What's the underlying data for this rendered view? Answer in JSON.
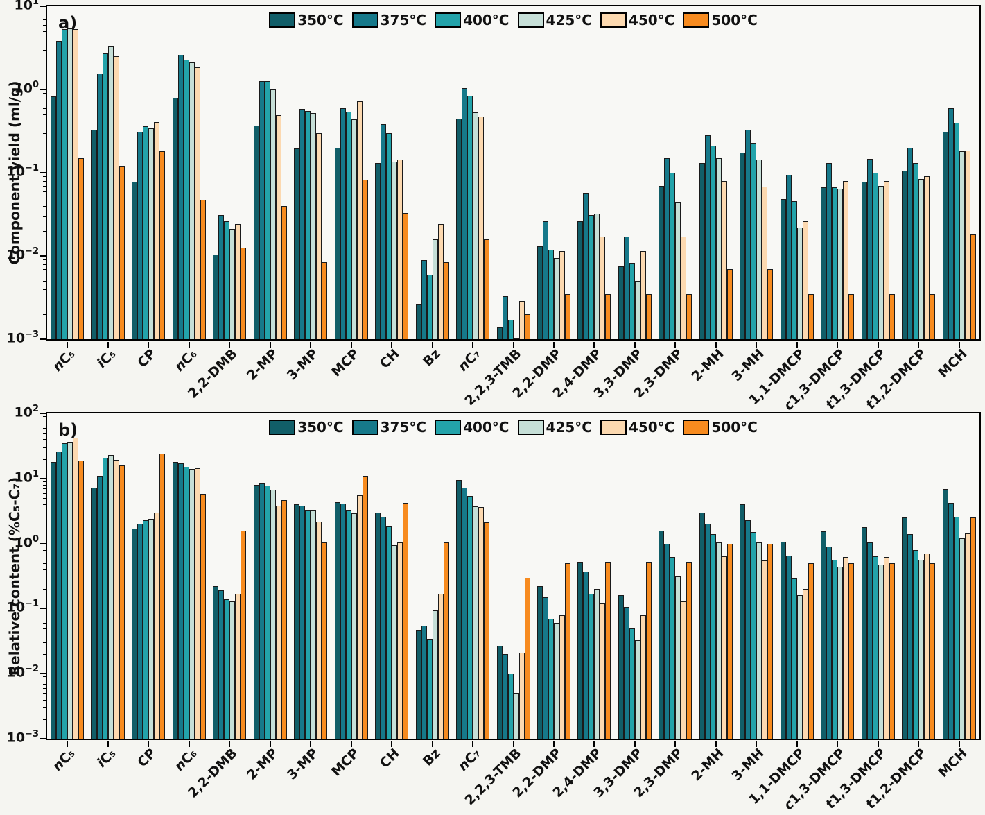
{
  "figure": {
    "panels": [
      {
        "letter": "a)",
        "ylabel": "Component yield (ml/g)",
        "ymin_exp": -3,
        "ymax_exp": 1
      },
      {
        "letter": "b)",
        "ylabel": "Relative content (%C₅-C₇)",
        "ymin_exp": -3,
        "ymax_exp": 2
      }
    ],
    "legend": [
      {
        "label": "350°C",
        "color": "#115e68"
      },
      {
        "label": "375°C",
        "color": "#16798a"
      },
      {
        "label": "400°C",
        "color": "#23a3aa"
      },
      {
        "label": "425°C",
        "color": "#c6dfd7"
      },
      {
        "label": "450°C",
        "color": "#fcd9b0"
      },
      {
        "label": "500°C",
        "color": "#f78b1f"
      }
    ],
    "categories": [
      {
        "label": "nC₅",
        "italic": 1
      },
      {
        "label": "iC₅",
        "italic": 1
      },
      {
        "label": "CP",
        "italic": 0
      },
      {
        "label": "nC₆",
        "italic": 1
      },
      {
        "label": "2,2-DMB",
        "italic": 0
      },
      {
        "label": "2-MP",
        "italic": 0
      },
      {
        "label": "3-MP",
        "italic": 0
      },
      {
        "label": "MCP",
        "italic": 0
      },
      {
        "label": "CH",
        "italic": 0
      },
      {
        "label": "Bz",
        "italic": 0
      },
      {
        "label": "nC₇",
        "italic": 1
      },
      {
        "label": "2,2,3-TMB",
        "italic": 0
      },
      {
        "label": "2,2-DMP",
        "italic": 0
      },
      {
        "label": "2,4-DMP",
        "italic": 0
      },
      {
        "label": "3,3-DMP",
        "italic": 0
      },
      {
        "label": "2,3-DMP",
        "italic": 0
      },
      {
        "label": "2-MH",
        "italic": 0
      },
      {
        "label": "3-MH",
        "italic": 0
      },
      {
        "label": "1,1-DMCP",
        "italic": 0
      },
      {
        "label": "c1,3-DMCP",
        "italic": 1
      },
      {
        "label": "t1,3-DMCP",
        "italic": 1
      },
      {
        "label": "t1,2-DMCP",
        "italic": 1
      },
      {
        "label": "MCH",
        "italic": 0
      }
    ]
  },
  "chart_data": [
    {
      "type": "bar",
      "panel": "a",
      "yscale": "log",
      "ylabel": "Component yield (ml/g)",
      "ylim": [
        0.001,
        10
      ],
      "legend_position": "top-center-inside",
      "grid": false,
      "categories": [
        "nC5",
        "iC5",
        "CP",
        "nC6",
        "2,2-DMB",
        "2-MP",
        "3-MP",
        "MCP",
        "CH",
        "Bz",
        "nC7",
        "2,2,3-TMB",
        "2,2-DMP",
        "2,4-DMP",
        "3,3-DMP",
        "2,3-DMP",
        "2-MH",
        "3-MH",
        "1,1-DMCP",
        "c1,3-DMCP",
        "t1,3-DMCP",
        "t1,2-DMCP",
        "MCH"
      ],
      "series": [
        {
          "name": "350°C",
          "values": [
            0.82,
            0.33,
            0.078,
            0.8,
            0.0105,
            0.37,
            0.195,
            0.2,
            0.13,
            0.0026,
            0.45,
            0.0014,
            0.013,
            0.026,
            0.0075,
            0.07,
            0.13,
            0.175,
            0.048,
            0.067,
            0.078,
            0.107,
            0.31
          ]
        },
        {
          "name": "375°C",
          "values": [
            3.8,
            1.55,
            0.31,
            2.6,
            0.031,
            1.25,
            0.58,
            0.6,
            0.38,
            0.009,
            1.05,
            0.0033,
            0.026,
            0.057,
            0.017,
            0.15,
            0.28,
            0.33,
            0.094,
            0.13,
            0.146,
            0.2,
            0.6
          ]
        },
        {
          "name": "400°C",
          "values": [
            5.3,
            2.7,
            0.36,
            2.3,
            0.026,
            1.25,
            0.55,
            0.54,
            0.3,
            0.006,
            0.85,
            0.0017,
            0.012,
            0.031,
            0.0082,
            0.1,
            0.21,
            0.23,
            0.046,
            0.067,
            0.1,
            0.13,
            0.4
          ]
        },
        {
          "name": "425°C",
          "values": [
            5.4,
            3.3,
            0.34,
            2.1,
            0.021,
            1.0,
            0.52,
            0.44,
            0.135,
            0.016,
            0.53,
            0.001,
            0.0095,
            0.032,
            0.005,
            0.045,
            0.15,
            0.145,
            0.022,
            0.064,
            0.069,
            0.084,
            0.18
          ]
        },
        {
          "name": "450°C",
          "values": [
            5.3,
            2.5,
            0.41,
            1.85,
            0.024,
            0.49,
            0.3,
            0.72,
            0.145,
            0.024,
            0.47,
            0.0029,
            0.0115,
            0.017,
            0.0115,
            0.017,
            0.08,
            0.068,
            0.026,
            0.08,
            0.08,
            0.091,
            0.185
          ]
        },
        {
          "name": "500°C",
          "values": [
            0.15,
            0.12,
            0.18,
            0.047,
            0.0125,
            0.04,
            0.0085,
            0.082,
            0.033,
            0.0085,
            0.016,
            0.002,
            0.0035,
            0.0035,
            0.0035,
            0.0035,
            0.007,
            0.007,
            0.0035,
            0.0035,
            0.0035,
            0.0035,
            0.018
          ]
        }
      ]
    },
    {
      "type": "bar",
      "panel": "b",
      "yscale": "log",
      "ylabel": "Relative content (%C5-C7)",
      "ylim": [
        0.001,
        100
      ],
      "legend_position": "top-center-inside",
      "grid": false,
      "categories": [
        "nC5",
        "iC5",
        "CP",
        "nC6",
        "2,2-DMB",
        "2-MP",
        "3-MP",
        "MCP",
        "CH",
        "Bz",
        "nC7",
        "2,2,3-TMB",
        "2,2-DMP",
        "2,4-DMP",
        "3,3-DMP",
        "2,3-DMP",
        "2-MH",
        "3-MH",
        "1,1-DMCP",
        "c1,3-DMCP",
        "t1,3-DMCP",
        "t1,2-DMCP",
        "MCH"
      ],
      "series": [
        {
          "name": "350°C",
          "values": [
            18,
            7.3,
            1.7,
            18,
            0.22,
            8.0,
            4.0,
            4.3,
            3.0,
            0.046,
            9.6,
            0.027,
            0.22,
            0.52,
            0.16,
            1.6,
            3.0,
            4.0,
            1.06,
            1.55,
            1.8,
            2.5,
            6.9
          ]
        },
        {
          "name": "375°C",
          "values": [
            26,
            11,
            2.0,
            17,
            0.19,
            8.4,
            3.85,
            4.1,
            2.6,
            0.055,
            7.2,
            0.02,
            0.15,
            0.37,
            0.105,
            1.0,
            2.0,
            2.3,
            0.65,
            0.9,
            1.05,
            1.4,
            4.2
          ]
        },
        {
          "name": "400°C",
          "values": [
            35,
            21,
            2.3,
            15,
            0.14,
            7.7,
            3.3,
            3.3,
            1.85,
            0.034,
            5.4,
            0.01,
            0.07,
            0.17,
            0.05,
            0.62,
            1.4,
            1.5,
            0.29,
            0.57,
            0.64,
            0.8,
            2.6
          ]
        },
        {
          "name": "425°C",
          "values": [
            37,
            23,
            2.4,
            14,
            0.13,
            6.7,
            3.3,
            2.9,
            0.95,
            0.095,
            3.7,
            0.005,
            0.06,
            0.2,
            0.033,
            0.31,
            1.05,
            1.05,
            0.16,
            0.44,
            0.48,
            0.56,
            1.2
          ]
        },
        {
          "name": "450°C",
          "values": [
            42,
            19.5,
            3.0,
            14.5,
            0.17,
            3.8,
            2.2,
            5.5,
            1.05,
            0.17,
            3.6,
            0.021,
            0.08,
            0.12,
            0.08,
            0.13,
            0.63,
            0.55,
            0.2,
            0.62,
            0.62,
            0.7,
            1.45
          ]
        },
        {
          "name": "500°C",
          "values": [
            19,
            16,
            24,
            5.8,
            1.6,
            4.7,
            1.05,
            11,
            4.2,
            1.05,
            2.1,
            0.3,
            0.5,
            0.52,
            0.52,
            0.52,
            1.0,
            1.0,
            0.5,
            0.5,
            0.5,
            0.5,
            2.5
          ]
        }
      ]
    }
  ]
}
